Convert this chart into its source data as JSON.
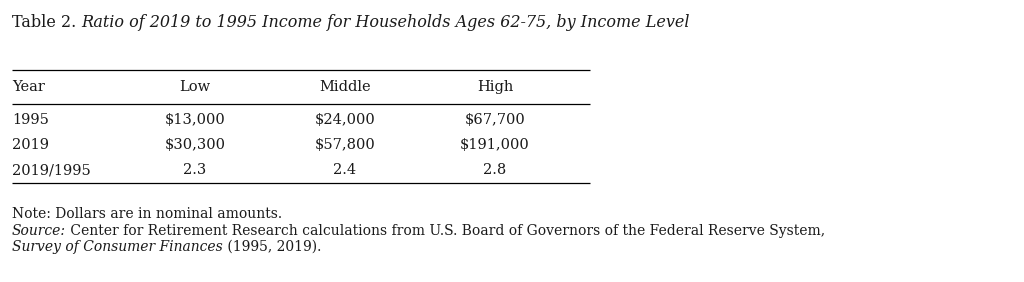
{
  "title_normal": "Table 2. ",
  "title_italic": "Ratio of 2019 to 1995 Income for Households Ages 62-75, by Income Level",
  "columns": [
    "Year",
    "Low",
    "Middle",
    "High"
  ],
  "rows": [
    [
      "1995",
      "$13,000",
      "$24,000",
      "$67,700"
    ],
    [
      "2019",
      "$30,300",
      "$57,800",
      "$191,000"
    ],
    [
      "2019/1995",
      "2.3",
      "2.4",
      "2.8"
    ]
  ],
  "note": "Note: Dollars are in nominal amounts.",
  "source_italic": "Source:",
  "source_normal": " Center for Retirement Research calculations from U.S. Board of Governors of the Federal Reserve System,",
  "source2_italic": "Survey of Consumer Finances",
  "source2_normal": " (1995, 2019).",
  "bg_color": "#ffffff",
  "text_color": "#1a1a1a",
  "font_size": 10.5,
  "title_font_size": 11.5
}
